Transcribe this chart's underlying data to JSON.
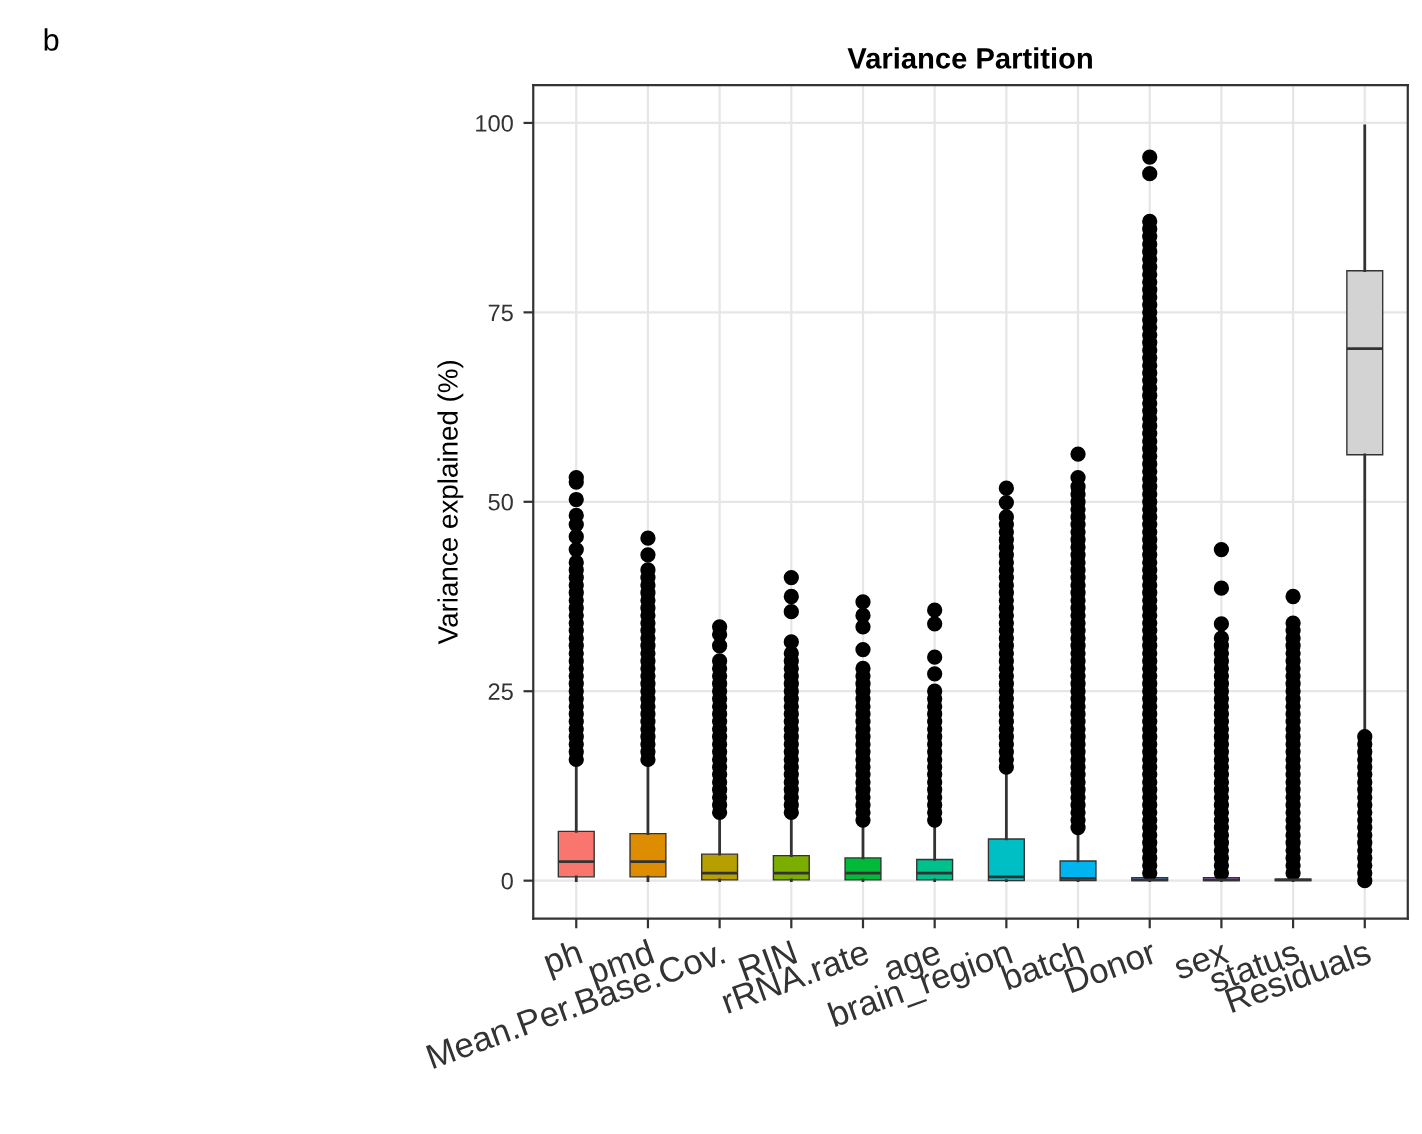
{
  "chart_data": {
    "type": "box",
    "title": "Variance Partition",
    "ylabel": "Variance explained (%)",
    "annotations": [
      "b"
    ],
    "categories": [
      "ph",
      "pmd",
      "Mean.Per.Base.Cov.",
      "RIN",
      "rRNA.rate",
      "age",
      "brain_region",
      "batch",
      "Donor",
      "sex",
      "status",
      "Residuals"
    ],
    "colors": [
      "#f8766d",
      "#de8c00",
      "#b79f00",
      "#7cae00",
      "#00ba38",
      "#00c08b",
      "#00bfc4",
      "#00b4f0",
      "#619cff",
      "#c77cff",
      "#f564e3",
      "#d3d3d3"
    ],
    "ylim": [
      -5,
      105
    ],
    "yticks": [
      0,
      25,
      50,
      75,
      100
    ],
    "grid": true,
    "legend": false,
    "marker": "circle",
    "boxes": [
      {
        "low": 0,
        "q1": 0.5,
        "median": 2.5,
        "q3": 6.5,
        "high": 15.5,
        "outliers": [
          16,
          17,
          18,
          19,
          20,
          21,
          22,
          23,
          24,
          25,
          26,
          27,
          28,
          29,
          30,
          31,
          32,
          33,
          34,
          35,
          36,
          37,
          38,
          39,
          40,
          41,
          42,
          43.7,
          45.4,
          47,
          48.2,
          50.3,
          52.6,
          53.2
        ]
      },
      {
        "low": 0,
        "q1": 0.5,
        "median": 2.5,
        "q3": 6.2,
        "high": 15,
        "outliers": [
          16,
          17,
          18,
          19,
          20,
          21,
          22,
          23,
          24,
          25,
          26,
          27,
          28,
          29,
          30,
          31,
          32,
          33,
          34,
          35,
          36,
          37,
          38,
          39,
          40,
          41,
          43,
          45.2
        ]
      },
      {
        "low": 0,
        "q1": 0.1,
        "median": 1,
        "q3": 3.5,
        "high": 8.5,
        "outliers": [
          9,
          10,
          11,
          12,
          13,
          14,
          15,
          16,
          17,
          18,
          19,
          20,
          21,
          22,
          23,
          24,
          25,
          26,
          27,
          28,
          29,
          31,
          32.5,
          33.5
        ]
      },
      {
        "low": 0,
        "q1": 0.1,
        "median": 1,
        "q3": 3.3,
        "high": 8,
        "outliers": [
          9,
          10,
          11,
          12,
          13,
          14,
          15,
          16,
          17,
          18,
          19,
          20,
          21,
          22,
          23,
          24,
          25,
          26,
          27,
          28,
          29,
          30,
          31.5,
          35.5,
          37.5,
          40
        ]
      },
      {
        "low": 0,
        "q1": 0.1,
        "median": 1,
        "q3": 3,
        "high": 7.5,
        "outliers": [
          8,
          9,
          10,
          11,
          12,
          13,
          14,
          15,
          16,
          17,
          18,
          19,
          20,
          21,
          22,
          23,
          24,
          25,
          26,
          27,
          28,
          30.5,
          33.5,
          35,
          36.8
        ]
      },
      {
        "low": 0,
        "q1": 0.1,
        "median": 1,
        "q3": 2.8,
        "high": 7.1,
        "outliers": [
          8,
          9,
          10,
          11,
          12,
          13,
          14,
          15,
          16,
          17,
          18,
          19,
          20,
          21,
          22,
          23,
          24,
          25,
          27.3,
          29.5,
          33.9,
          35.7
        ]
      },
      {
        "low": 0,
        "q1": 0,
        "median": 0.5,
        "q3": 5.5,
        "high": 14,
        "outliers": [
          15,
          16,
          17,
          18,
          19,
          20,
          21,
          22,
          23,
          24,
          25,
          26,
          27,
          28,
          29,
          30,
          31,
          32,
          33,
          34,
          35,
          36,
          37,
          38,
          39,
          40,
          41,
          42,
          43,
          44,
          45,
          46,
          47,
          48,
          49.9,
          51.8
        ]
      },
      {
        "low": 0,
        "q1": 0,
        "median": 0.3,
        "q3": 2.6,
        "high": 6.3,
        "outliers": [
          7,
          8,
          9,
          10,
          11,
          12,
          13,
          14,
          15,
          16,
          17,
          18,
          19,
          20,
          21,
          22,
          23,
          24,
          25,
          26,
          27,
          28,
          29,
          30,
          31,
          32,
          33,
          34,
          35,
          36,
          37,
          38,
          39,
          40,
          41,
          42,
          43,
          44,
          45,
          46,
          47,
          48,
          49,
          50,
          51,
          52,
          53.2,
          56.3
        ]
      },
      {
        "low": 0,
        "q1": 0,
        "median": 0.1,
        "q3": 0.4,
        "high": 0.8,
        "outliers": [
          1,
          2,
          3,
          4,
          5,
          6,
          7,
          8,
          9,
          10,
          11,
          12,
          13,
          14,
          15,
          16,
          17,
          18,
          19,
          20,
          21,
          22,
          23,
          24,
          25,
          26,
          27,
          28,
          29,
          30,
          31,
          32,
          33,
          34,
          35,
          36,
          37,
          38,
          39,
          40,
          41,
          42,
          43,
          44,
          45,
          46,
          47,
          48,
          49,
          50,
          51,
          52,
          53,
          54,
          55,
          56,
          57,
          58,
          59,
          60,
          61,
          62,
          63,
          64,
          65,
          66,
          67,
          68,
          69,
          70,
          71,
          72,
          73,
          74,
          75,
          76,
          77,
          78,
          79,
          80,
          81,
          82,
          83,
          84,
          85,
          86,
          87,
          93.3,
          95.5
        ]
      },
      {
        "low": 0,
        "q1": 0,
        "median": 0.1,
        "q3": 0.4,
        "high": 0.8,
        "outliers": [
          1,
          2,
          3,
          4,
          5,
          6,
          7,
          8,
          9,
          10,
          11,
          12,
          13,
          14,
          15,
          16,
          17,
          18,
          19,
          20,
          21,
          22,
          23,
          24,
          25,
          26,
          27,
          28,
          29,
          30,
          31,
          32,
          33.9,
          38.6,
          43.7
        ]
      },
      {
        "low": 0,
        "q1": 0,
        "median": 0.1,
        "q3": 0.2,
        "high": 0.5,
        "outliers": [
          1,
          2,
          3,
          4,
          5,
          6,
          7,
          8,
          9,
          10,
          11,
          12,
          13,
          14,
          15,
          16,
          17,
          18,
          19,
          20,
          21,
          22,
          23,
          24,
          25,
          26,
          27,
          28,
          29,
          30,
          31,
          32,
          33,
          34,
          37.5
        ]
      },
      {
        "low": 19.9,
        "q1": 56.2,
        "median": 70.2,
        "q3": 80.5,
        "high": 99.6,
        "outliers": [
          0,
          1,
          2,
          3,
          4,
          5,
          6,
          7,
          8,
          9,
          10,
          11,
          12,
          13,
          14,
          15,
          16,
          17,
          18,
          19
        ]
      }
    ]
  }
}
